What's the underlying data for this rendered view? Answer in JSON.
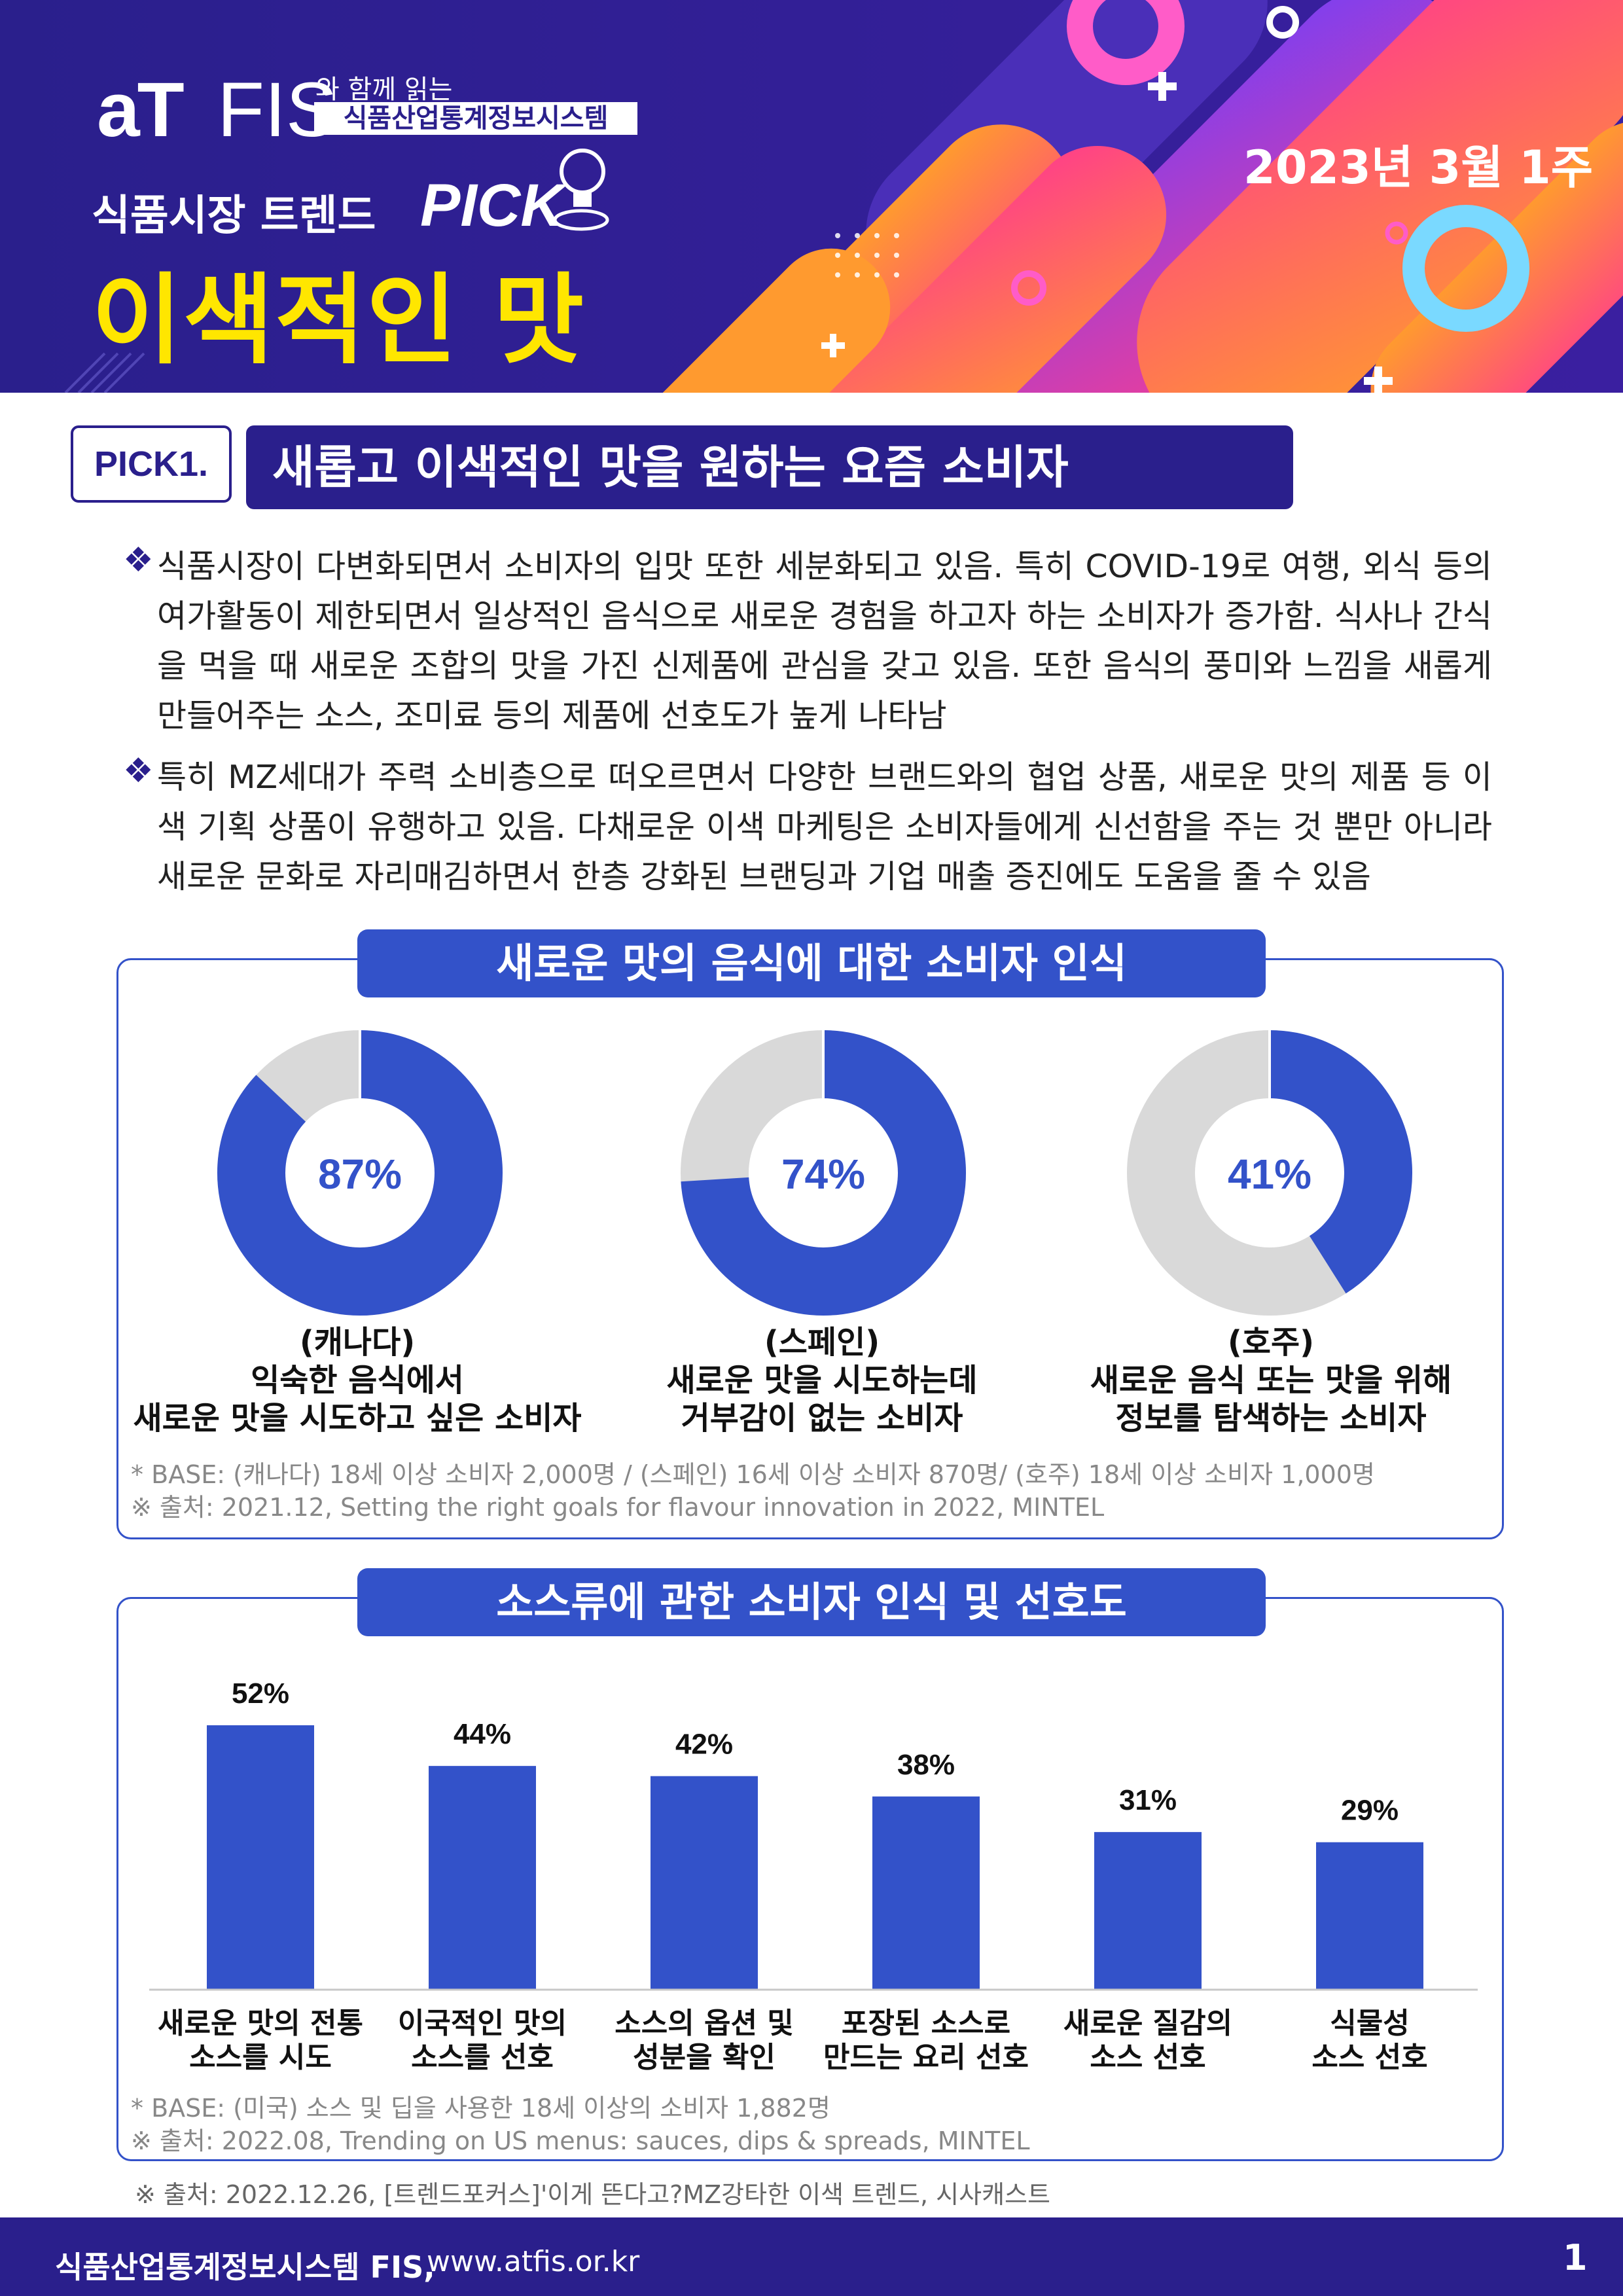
{
  "header": {
    "logo_at": "aT",
    "logo_fis": "FIS",
    "logo_with": "와 함께 읽는",
    "logo_system": "식품산업통계정보시스템",
    "date": "2023년 3월 1주",
    "trend_label": "식품시장 트렌드",
    "pick_word": "PICK",
    "title": "이색적인 맛",
    "colors": {
      "banner": "#2a1f8c",
      "title": "#ffe600",
      "orange": "#ff7a2f",
      "pink": "#ff3d8b"
    }
  },
  "section": {
    "badge": "PICK1.",
    "headline": "새롭고 이색적인 맛을 원하는 요즘 소비자"
  },
  "paragraphs": {
    "bullet_icon": "❖",
    "p1": "식품시장이 다변화되면서 소비자의 입맛 또한 세분화되고 있음. 특히 COVID-19로 여행, 외식 등의 여가활동이 제한되면서 일상적인 음식으로 새로운 경험을 하고자 하는 소비자가 증가함. 식사나 간식을 먹을 때 새로운 조합의 맛을 가진 신제품에 관심을 갖고 있음. 또한 음식의 풍미와 느낌을 새롭게 만들어주는 소스, 조미료 등의 제품에 선호도가 높게 나타남",
    "p2": "특히 MZ세대가 주력 소비층으로 떠오르면서 다양한 브랜드와의 협업 상품, 새로운 맛의 제품 등 이색 기획 상품이 유행하고 있음. 다채로운 이색 마케팅은 소비자들에게 신선함을 주는 것 뿐만 아니라 새로운 문화로 자리매김하면서 한층 강화된 브랜딩과 기업 매출 증진에도 도움을 줄 수 있음"
  },
  "panel1": {
    "title": "새로운 맛의 음식에 대한 소비자 인식",
    "donuts": [
      {
        "value": 87,
        "label": "87%",
        "line1": "(캐나다)",
        "line2": "익숙한 음식에서",
        "line3": "새로운 맛을 시도하고 싶은 소비자"
      },
      {
        "value": 74,
        "label": "74%",
        "line1": "(스페인)",
        "line2": "새로운 맛을 시도하는데",
        "line3": "거부감이 없는 소비자"
      },
      {
        "value": 41,
        "label": "41%",
        "line1": "(호주)",
        "line2": "새로운 음식 또는 맛을 위해",
        "line3": "정보를 탐색하는 소비자"
      }
    ],
    "note_base": "* BASE: (캐나다) 18세 이상 소비자 2,000명 / (스페인) 16세 이상 소비자 870명/ (호주) 18세 이상 소비자 1,000명",
    "note_source": "※ 출처: 2021.12, Setting the right goals for flavour innovation in 2022, MINTEL",
    "colors": {
      "fill": "#3352c9",
      "rest": "#d9d9d9"
    }
  },
  "panel2": {
    "title": "소스류에 관한 소비자 인식 및 선호도",
    "note_base": "* BASE: (미국) 소스 및 딥을 사용한 18세 이상의 소비자 1,882명",
    "note_source": "※ 출처: 2022.08, Trending on US menus: sauces, dips & spreads, MINTEL",
    "bar_color": "#3352c9"
  },
  "chart_data": {
    "type": "bar",
    "title": "소스류에 관한 소비자 인식 및 선호도",
    "categories": [
      "새로운 맛의 전통 소스를 시도",
      "이국적인 맛의 소스를 선호",
      "소스의 옵션 및 성분을 확인",
      "포장된 소스로 만드는 요리 선호",
      "새로운 질감의 소스 선호",
      "식물성 소스 선호"
    ],
    "category_lines": [
      [
        "새로운 맛의 전통",
        "소스를 시도"
      ],
      [
        "이국적인 맛의",
        "소스를 선호"
      ],
      [
        "소스의 옵션 및",
        "성분을 확인"
      ],
      [
        "포장된 소스로",
        "만드는 요리 선호"
      ],
      [
        "새로운 질감의",
        "소스 선호"
      ],
      [
        "식물성",
        "소스 선호"
      ]
    ],
    "values": [
      52,
      44,
      42,
      38,
      31,
      29
    ],
    "value_labels": [
      "52%",
      "44%",
      "42%",
      "38%",
      "31%",
      "29%"
    ],
    "ylim": [
      0,
      60
    ],
    "xlabel": "",
    "ylabel": ""
  },
  "footer": {
    "source": "※ 출처: 2022.12.26, [트렌드포커스]'이게 뜬다고?MZ강타한 이색 트렌드, 시사캐스트",
    "org": "식품산업통계정보시스템 FIS,",
    "url": "www.atfis.or.kr",
    "page": "1"
  }
}
